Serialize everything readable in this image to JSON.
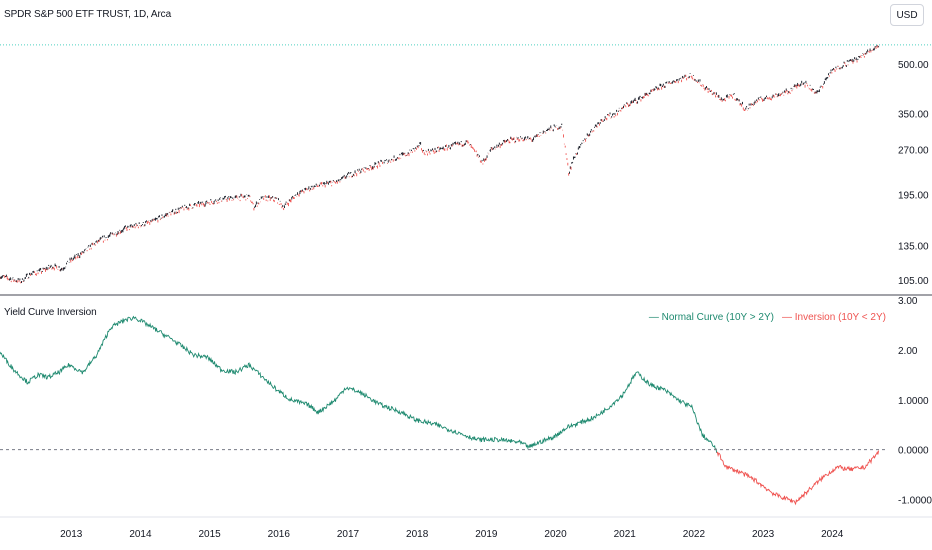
{
  "header": {
    "symbol_title": "SPDR S&P 500 ETF TRUST, 1D, Arca",
    "currency": "USD"
  },
  "indicator": {
    "title": "Yield Curve Inversion",
    "legend_normal": "— Normal Curve (10Y > 2Y)",
    "legend_inversion": "— Inversion (10Y < 2Y)"
  },
  "colors": {
    "up": "#26a69a",
    "down": "#ef5350",
    "normal": "#1f8a70",
    "inversion": "#ef5350",
    "axis_text": "#131722",
    "price_line": "#4dd0c0"
  },
  "chart_data": [
    {
      "type": "line",
      "scale": "log",
      "ylim": [
        95,
        640
      ],
      "y_ticks": [
        105,
        135,
        195,
        270,
        350,
        500
      ],
      "y_tick_labels": [
        "105.00",
        "135.00",
        "195.00",
        "270.00",
        "350.00",
        "500.00"
      ],
      "x_tick_labels": [
        "2013",
        "2014",
        "2015",
        "2016",
        "2017",
        "2018",
        "2019",
        "2020",
        "2021",
        "2022",
        "2023",
        "2024"
      ],
      "x": [
        2012.0,
        2012.15,
        2012.3,
        2012.45,
        2012.6,
        2012.75,
        2012.9,
        2013.0,
        2013.2,
        2013.4,
        2013.6,
        2013.8,
        2014.0,
        2014.2,
        2014.4,
        2014.6,
        2014.8,
        2015.0,
        2015.2,
        2015.4,
        2015.6,
        2015.67,
        2015.8,
        2016.0,
        2016.1,
        2016.3,
        2016.5,
        2016.7,
        2016.9,
        2017.0,
        2017.3,
        2017.6,
        2017.9,
        2018.08,
        2018.12,
        2018.3,
        2018.5,
        2018.75,
        2018.98,
        2019.1,
        2019.3,
        2019.5,
        2019.7,
        2019.9,
        2020.12,
        2020.22,
        2020.3,
        2020.5,
        2020.7,
        2020.9,
        2021.0,
        2021.3,
        2021.6,
        2021.9,
        2022.0,
        2022.2,
        2022.45,
        2022.6,
        2022.78,
        2022.95,
        2023.15,
        2023.4,
        2023.6,
        2023.82,
        2024.0,
        2024.2,
        2024.4,
        2024.6,
        2024.7
      ],
      "y": [
        108,
        106,
        104,
        110,
        112,
        116,
        114,
        120,
        128,
        138,
        145,
        152,
        156,
        160,
        168,
        175,
        180,
        184,
        188,
        190,
        192,
        178,
        190,
        188,
        178,
        196,
        205,
        210,
        214,
        222,
        235,
        248,
        262,
        278,
        264,
        268,
        275,
        285,
        245,
        270,
        285,
        292,
        290,
        310,
        320,
        228,
        255,
        300,
        335,
        350,
        365,
        395,
        430,
        455,
        460,
        420,
        385,
        400,
        360,
        385,
        395,
        410,
        440,
        405,
        470,
        500,
        520,
        555,
        575
      ],
      "last_value": 575
    },
    {
      "type": "line",
      "title": "Yield Curve Inversion",
      "ylim": [
        -1.25,
        3.0
      ],
      "y_ticks": [
        3.0,
        2.0,
        1.0,
        0.0,
        -1.0
      ],
      "y_tick_labels": [
        "3.00",
        "2.00",
        "1.0000",
        "0.0000",
        "-1.0000"
      ],
      "x_tick_labels": [
        "2013",
        "2014",
        "2015",
        "2016",
        "2017",
        "2018",
        "2019",
        "2020",
        "2021",
        "2022",
        "2023",
        "2024"
      ],
      "series": [
        {
          "name": "Normal Curve (10Y > 2Y)",
          "color": "#1f8a70"
        },
        {
          "name": "Inversion (10Y < 2Y)",
          "color": "#ef5350"
        }
      ],
      "x": [
        2012.0,
        2012.2,
        2012.4,
        2012.55,
        2012.7,
        2012.85,
        2013.0,
        2013.2,
        2013.4,
        2013.6,
        2013.8,
        2013.95,
        2014.2,
        2014.5,
        2014.8,
        2015.0,
        2015.2,
        2015.4,
        2015.6,
        2015.8,
        2016.0,
        2016.2,
        2016.45,
        2016.6,
        2016.85,
        2017.0,
        2017.2,
        2017.5,
        2017.8,
        2018.0,
        2018.3,
        2018.6,
        2018.9,
        2019.2,
        2019.5,
        2019.65,
        2019.8,
        2020.0,
        2020.2,
        2020.4,
        2020.6,
        2020.8,
        2021.0,
        2021.2,
        2021.4,
        2021.6,
        2021.8,
        2022.0,
        2022.15,
        2022.3,
        2022.5,
        2022.7,
        2022.9,
        2023.0,
        2023.2,
        2023.5,
        2023.7,
        2023.9,
        2024.1,
        2024.3,
        2024.5,
        2024.7
      ],
      "y": [
        1.95,
        1.6,
        1.35,
        1.5,
        1.45,
        1.55,
        1.7,
        1.55,
        1.9,
        2.45,
        2.6,
        2.65,
        2.45,
        2.2,
        1.9,
        1.85,
        1.6,
        1.55,
        1.7,
        1.45,
        1.2,
        1.0,
        0.9,
        0.75,
        1.0,
        1.25,
        1.15,
        0.9,
        0.75,
        0.6,
        0.5,
        0.35,
        0.2,
        0.2,
        0.15,
        0.05,
        0.15,
        0.25,
        0.45,
        0.55,
        0.65,
        0.85,
        1.1,
        1.55,
        1.3,
        1.2,
        1.0,
        0.85,
        0.3,
        0.1,
        -0.35,
        -0.45,
        -0.6,
        -0.7,
        -0.9,
        -1.05,
        -0.8,
        -0.55,
        -0.35,
        -0.4,
        -0.35,
        -0.05
      ],
      "reference_line": 0.0
    }
  ]
}
